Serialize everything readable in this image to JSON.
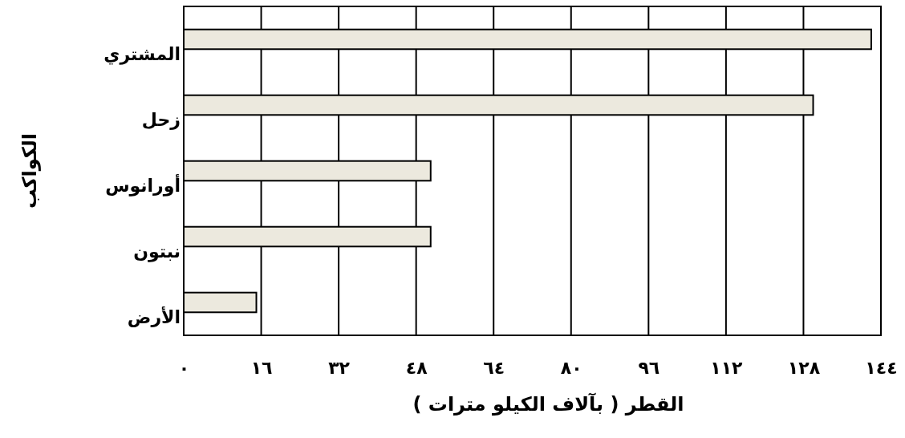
{
  "chart_data": {
    "type": "bar",
    "orientation": "horizontal",
    "categories": [
      "المشتري",
      "زحل",
      "أورانوس",
      "نبتون",
      "الأرض"
    ],
    "values": [
      142,
      130,
      51,
      51,
      15
    ],
    "color": "#ece9de",
    "xlim": [
      0,
      144
    ],
    "xticks": [
      {
        "value": 0,
        "label": "٠"
      },
      {
        "value": 16,
        "label": "١٦"
      },
      {
        "value": 32,
        "label": "٣٢"
      },
      {
        "value": 48,
        "label": "٤٨"
      },
      {
        "value": 64,
        "label": "٦٤"
      },
      {
        "value": 80,
        "label": "٨٠"
      },
      {
        "value": 96,
        "label": "٩٦"
      },
      {
        "value": 112,
        "label": "١١٢"
      },
      {
        "value": 128,
        "label": "١٢٨"
      },
      {
        "value": 144,
        "label": "١٤٤"
      }
    ],
    "grid": "x",
    "xlabel": "القطر ( بآلاف الكيلو مترات )",
    "ylabel": "الكواكب"
  }
}
